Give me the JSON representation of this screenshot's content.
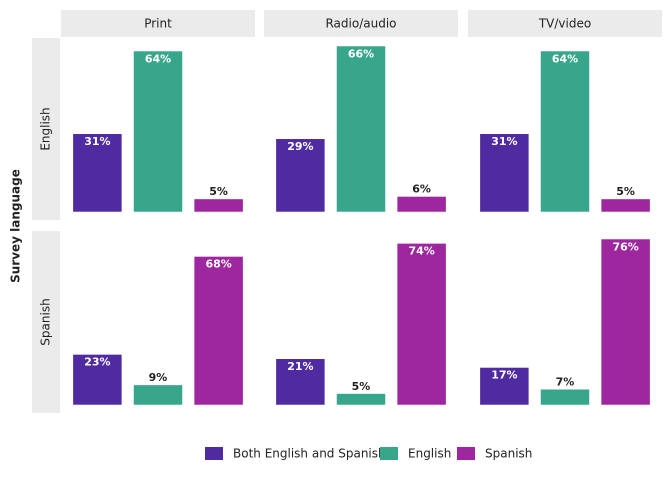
{
  "chart_data": {
    "type": "bar",
    "y_label": "Survey language",
    "columns": [
      "Print",
      "Radio/audio",
      "TV/video"
    ],
    "categories": [
      "Both English and Spanish",
      "English",
      "Spanish"
    ],
    "colors": [
      "#4f2aa0",
      "#38a68b",
      "#9e269f"
    ],
    "rows": [
      {
        "label": "English",
        "ylim": [
          -3.3,
          69.3
        ],
        "panels": [
          {
            "values": [
              31,
              64,
              5
            ],
            "value_labels": [
              "31%",
              "64%",
              "5%"
            ]
          },
          {
            "values": [
              29,
              66,
              6
            ],
            "value_labels": [
              "29%",
              "66%",
              "6%"
            ]
          },
          {
            "values": [
              31,
              64,
              5
            ],
            "value_labels": [
              "31%",
              "64%",
              "5%"
            ]
          }
        ]
      },
      {
        "label": "Spanish",
        "ylim": [
          -3.8,
          79.8
        ],
        "panels": [
          {
            "values": [
              23,
              9,
              68
            ],
            "value_labels": [
              "23%",
              "9%",
              "68%"
            ]
          },
          {
            "values": [
              21,
              5,
              74
            ],
            "value_labels": [
              "21%",
              "5%",
              "74%"
            ]
          },
          {
            "values": [
              17,
              7,
              76
            ],
            "value_labels": [
              "17%",
              "7%",
              "76%"
            ]
          }
        ]
      }
    ]
  }
}
